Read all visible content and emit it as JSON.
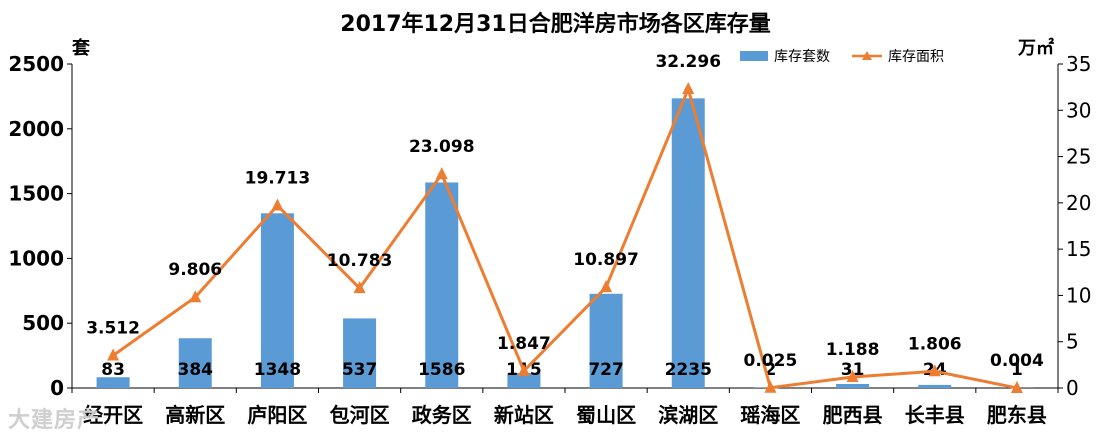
{
  "chart_data": {
    "type": "bar",
    "title": "2017年12月31日合肥洋房市场各区库存量",
    "y_left_unit": "套",
    "y_right_unit": "万㎡",
    "categories": [
      "经开区",
      "高新区",
      "庐阳区",
      "包河区",
      "政务区",
      "新站区",
      "蜀山区",
      "滨湖区",
      "瑶海区",
      "肥西县",
      "长丰县",
      "肥东县"
    ],
    "series": [
      {
        "name": "库存套数",
        "type": "bar",
        "axis": "left",
        "color": "#5b9bd5",
        "values": [
          83,
          384,
          1348,
          537,
          1586,
          115,
          727,
          2235,
          2,
          31,
          24,
          1
        ],
        "labels": [
          "83",
          "384",
          "1348",
          "537",
          "1586",
          "115",
          "727",
          "2235",
          "2",
          "31",
          "24",
          "1"
        ]
      },
      {
        "name": "库存面积",
        "type": "line",
        "axis": "right",
        "color": "#ed7d31",
        "values": [
          3.512,
          9.806,
          19.713,
          10.783,
          23.098,
          1.847,
          10.897,
          32.296,
          0.025,
          1.188,
          1.806,
          0.004
        ],
        "labels": [
          "3.512",
          "9.806",
          "19.713",
          "10.783",
          "23.098",
          "1.847",
          "10.897",
          "32.296",
          "0.025",
          "1.188",
          "1.806",
          "0.004"
        ]
      }
    ],
    "y_left_ticks": [
      "0",
      "500",
      "1000",
      "1500",
      "2000",
      "2500"
    ],
    "y_left_lim": [
      0,
      2500
    ],
    "y_right_ticks": [
      "0",
      "5",
      "10",
      "15",
      "20",
      "25",
      "30",
      "35"
    ],
    "y_right_lim": [
      0,
      35
    ],
    "grid": false,
    "legend_position": "top-right"
  },
  "watermark": "大建房产"
}
